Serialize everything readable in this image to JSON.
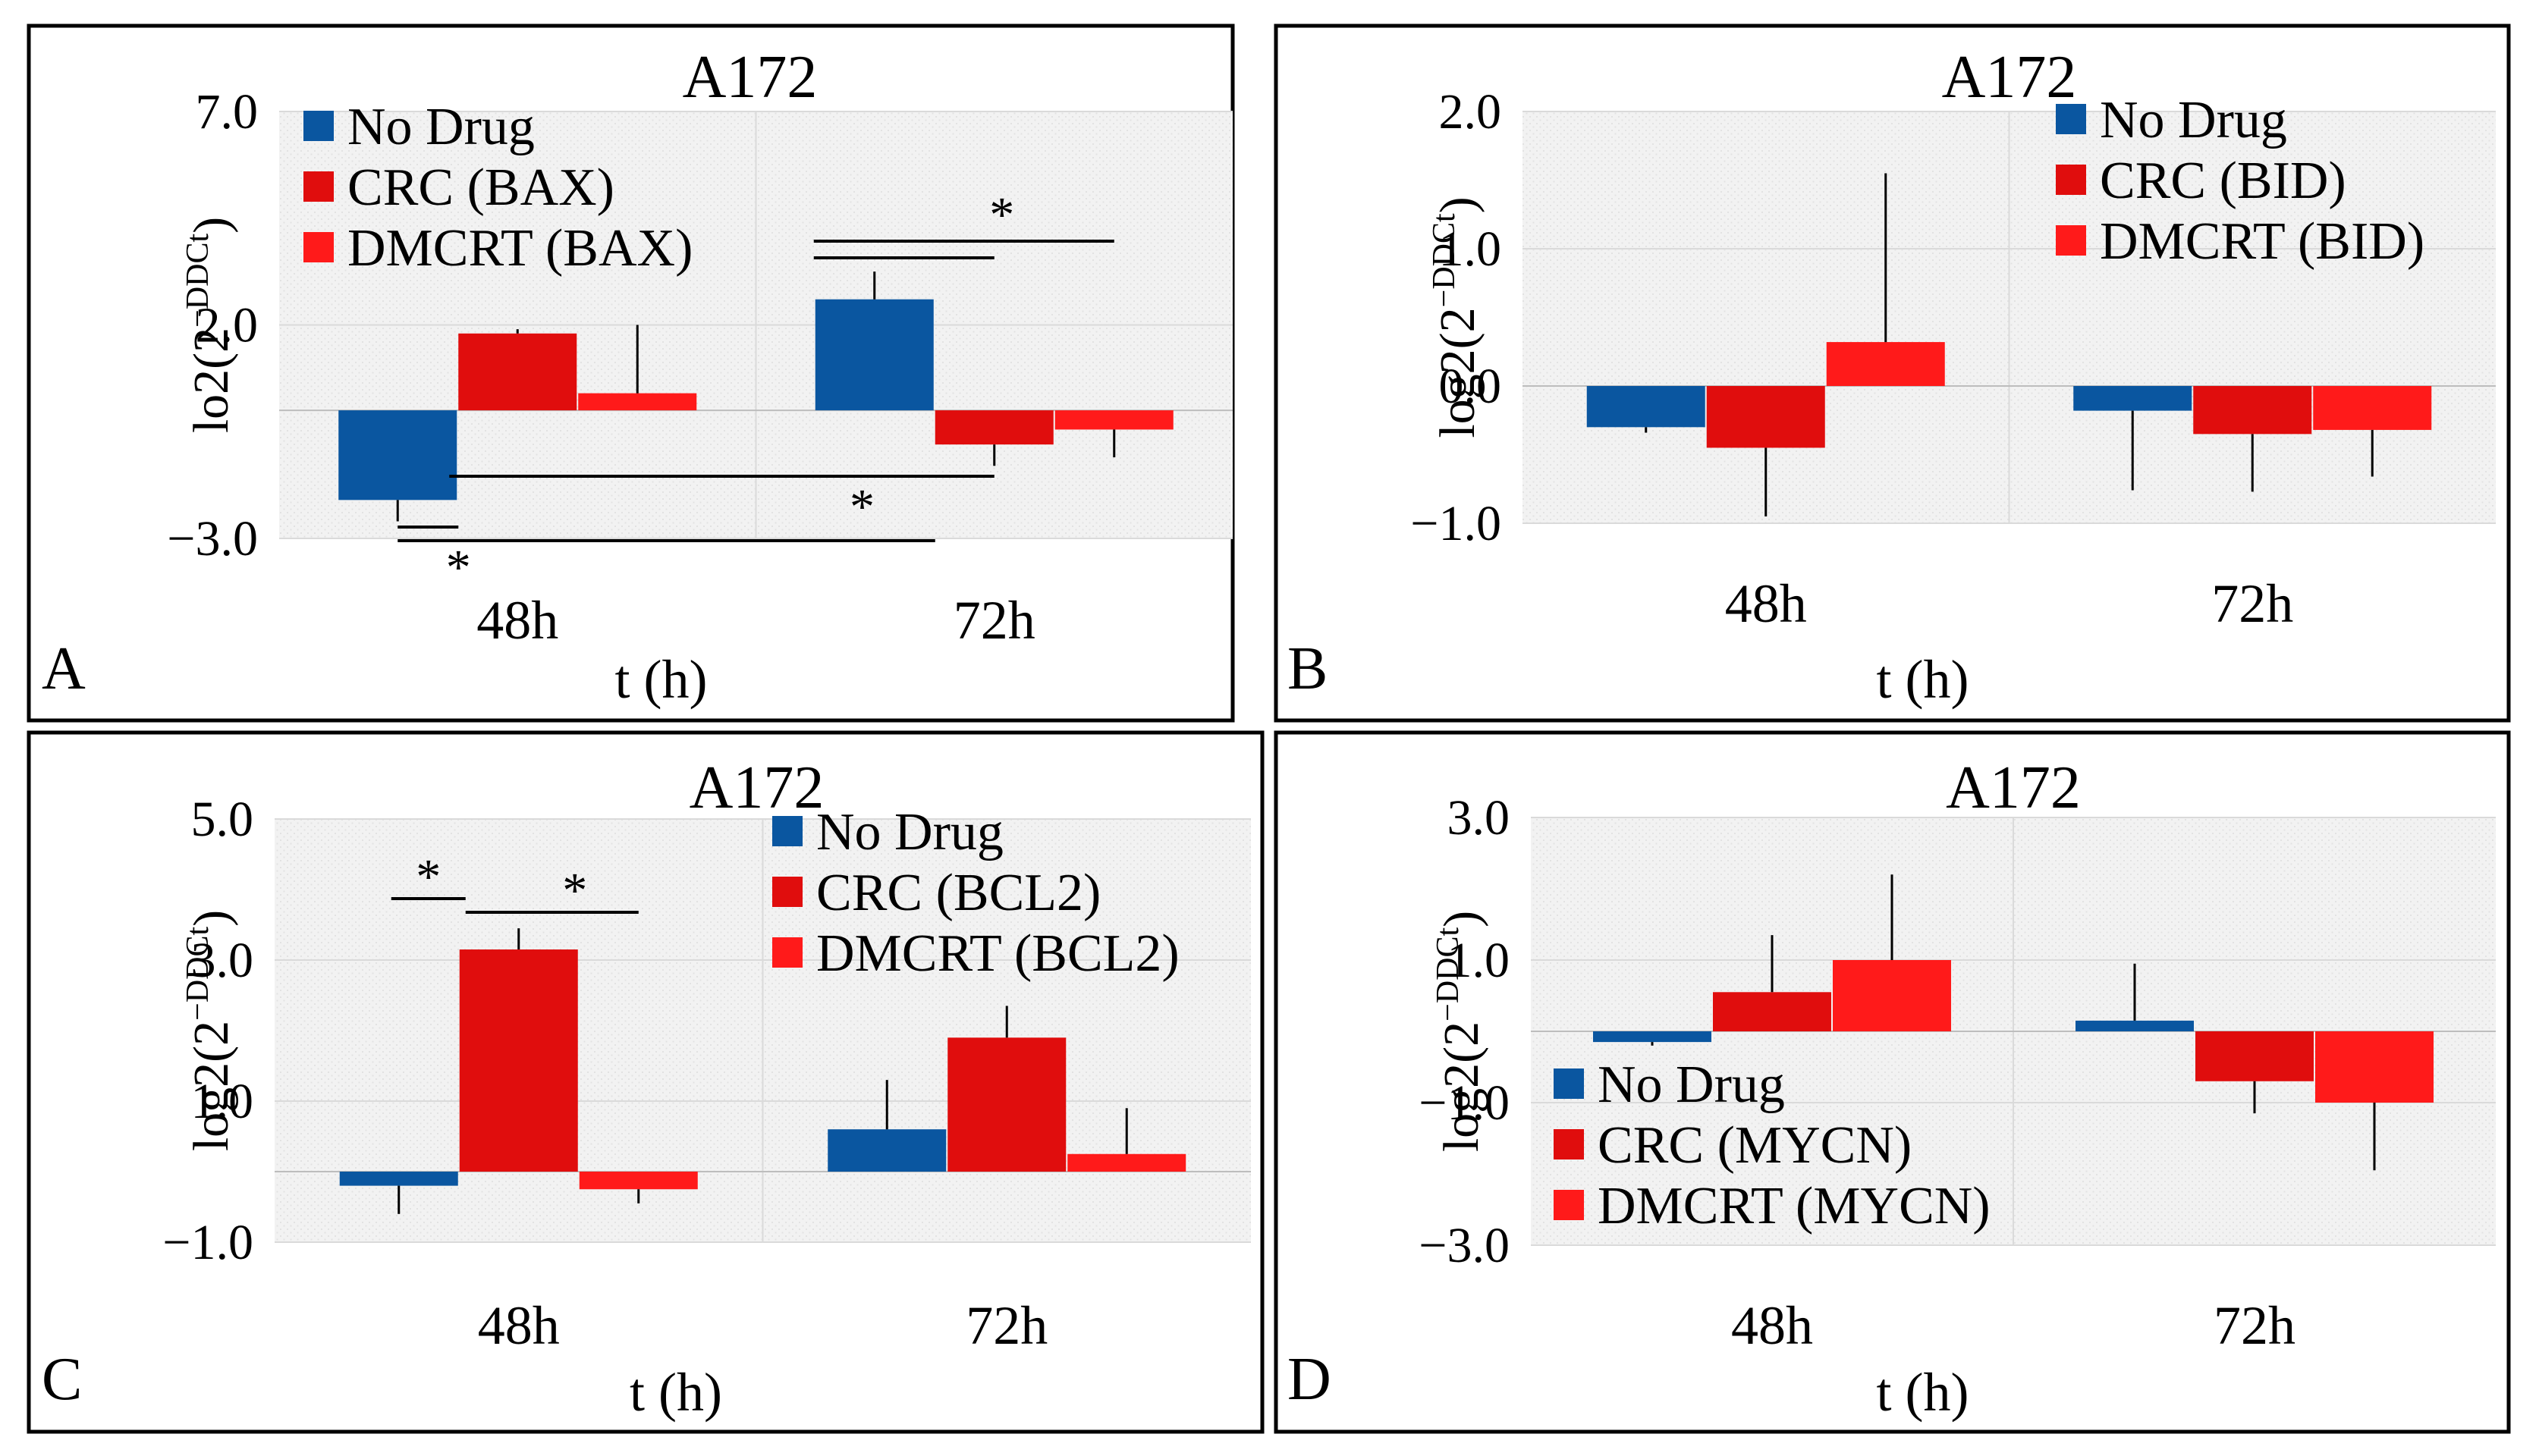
{
  "figure": {
    "colors": {
      "no_drug": "#0A56A0",
      "crc": "#E00D0D",
      "dmcrt": "#FF1A1A",
      "plot_bg": "#F1F1F1",
      "grid": "#DADADA",
      "frame": "#000000"
    }
  },
  "chart_data": [
    {
      "panel": "A",
      "type": "bar",
      "title": "A172",
      "ylabel_base": "lo2(2",
      "ylabel_sup": "−DDCt",
      "ylabel_close": ")",
      "xlabel": "t (h)",
      "categories": [
        "48h",
        "72h"
      ],
      "ylim": [
        -3.0,
        7.0
      ],
      "yticks": [
        "7.0",
        "2.0",
        "−3.0"
      ],
      "ytick_values": [
        7.0,
        2.0,
        -3.0
      ],
      "legend": {
        "position": "top-left"
      },
      "series": [
        {
          "name": "No Drug",
          "color_key": "no_drug",
          "values": [
            -2.1,
            2.6
          ],
          "errors": [
            0.5,
            0.65
          ]
        },
        {
          "name": "CRC (BAX)",
          "color_key": "crc",
          "values": [
            1.8,
            -0.8
          ],
          "errors": [
            0.1,
            0.5
          ]
        },
        {
          "name": "DMCRT (BAX)",
          "color_key": "dmcrt",
          "values": [
            0.4,
            -0.45
          ],
          "errors": [
            1.6,
            0.65
          ]
        }
      ],
      "significance": [
        {
          "label": "*",
          "from": [
            "72h",
            0
          ],
          "to": [
            "72h",
            2
          ]
        },
        {
          "label": "*",
          "from": [
            "48h",
            1
          ],
          "to": [
            "72h",
            1
          ]
        },
        {
          "label": "*",
          "from": [
            "48h",
            0
          ],
          "to": [
            "72h",
            0
          ]
        }
      ]
    },
    {
      "panel": "B",
      "type": "bar",
      "title": "A172",
      "ylabel_base": "log2(2",
      "ylabel_sup": "−DDCt",
      "ylabel_close": ")",
      "xlabel": "t (h)",
      "categories": [
        "48h",
        "72h"
      ],
      "ylim": [
        -1.0,
        2.0
      ],
      "yticks": [
        "2.0",
        "1.0",
        "0.0",
        "−1.0"
      ],
      "ytick_values": [
        2.0,
        1.0,
        0.0,
        -1.0
      ],
      "legend": {
        "position": "top-right"
      },
      "series": [
        {
          "name": "No Drug",
          "color_key": "no_drug",
          "values": [
            -0.3,
            -0.18
          ],
          "errors": [
            0.04,
            0.58
          ]
        },
        {
          "name": "CRC (BID)",
          "color_key": "crc",
          "values": [
            -0.45,
            -0.35
          ],
          "errors": [
            0.5,
            0.42
          ]
        },
        {
          "name": "DMCRT (BID)",
          "color_key": "dmcrt",
          "values": [
            0.32,
            -0.32
          ],
          "errors": [
            1.23,
            0.34
          ]
        }
      ],
      "significance": []
    },
    {
      "panel": "C",
      "type": "bar",
      "title": "A172",
      "ylabel_base": "log2(2",
      "ylabel_sup": "−DDCt",
      "ylabel_close": ")",
      "xlabel": "t (h)",
      "categories": [
        "48h",
        "72h"
      ],
      "ylim": [
        -1.0,
        5.0
      ],
      "yticks": [
        "5.0",
        "3.0",
        "1.0",
        "−1.0"
      ],
      "ytick_values": [
        5.0,
        3.0,
        1.0,
        -1.0
      ],
      "legend": {
        "position": "top-right"
      },
      "series": [
        {
          "name": "No Drug",
          "color_key": "no_drug",
          "values": [
            -0.2,
            0.6
          ],
          "errors": [
            0.4,
            0.7
          ]
        },
        {
          "name": "CRC (BCL2)",
          "color_key": "crc",
          "values": [
            3.15,
            1.9
          ],
          "errors": [
            0.3,
            0.45
          ]
        },
        {
          "name": "DMCRT (BCL2)",
          "color_key": "dmcrt",
          "values": [
            -0.25,
            0.25
          ],
          "errors": [
            0.2,
            0.65
          ]
        }
      ],
      "significance": [
        {
          "label": "*",
          "from": [
            "48h",
            0
          ],
          "to": [
            "48h",
            1
          ]
        },
        {
          "label": "*",
          "from": [
            "48h",
            1
          ],
          "to": [
            "48h",
            2
          ]
        }
      ]
    },
    {
      "panel": "D",
      "type": "bar",
      "title": "A172",
      "ylabel_base": "log2(2",
      "ylabel_sup": "−DDCt",
      "ylabel_close": ")",
      "xlabel": "t (h)",
      "categories": [
        "48h",
        "72h"
      ],
      "ylim": [
        -3.0,
        3.0
      ],
      "yticks": [
        "3.0",
        "1.0",
        "−1.0",
        "−3.0"
      ],
      "ytick_values": [
        3.0,
        1.0,
        -1.0,
        -3.0
      ],
      "legend": {
        "position": "bottom-left"
      },
      "series": [
        {
          "name": "No Drug",
          "color_key": "no_drug",
          "values": [
            -0.15,
            0.15
          ],
          "errors": [
            0.05,
            0.8
          ]
        },
        {
          "name": "CRC (MYCN)",
          "color_key": "crc",
          "values": [
            0.55,
            -0.7
          ],
          "errors": [
            0.8,
            0.45
          ]
        },
        {
          "name": "DMCRT (MYCN)",
          "color_key": "dmcrt",
          "values": [
            1.0,
            -1.0
          ],
          "errors": [
            1.2,
            0.95
          ]
        }
      ],
      "significance": []
    }
  ]
}
